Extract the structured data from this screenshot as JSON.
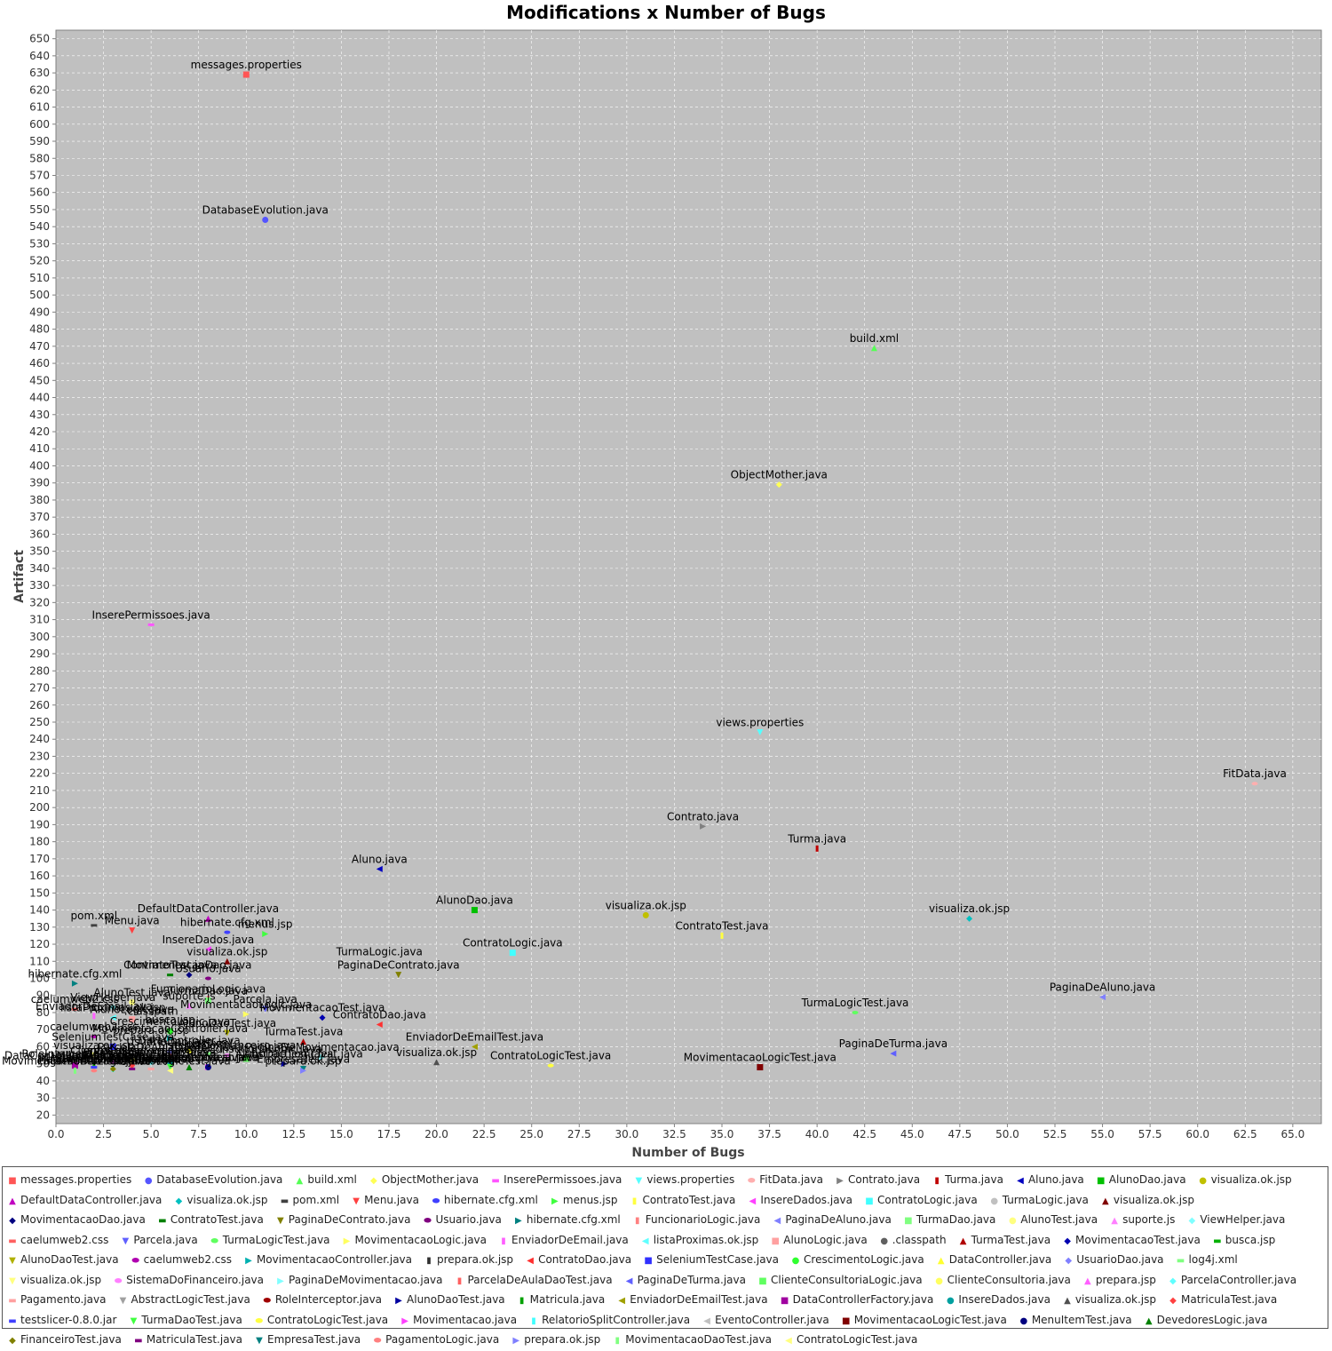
{
  "chart_data": {
    "type": "scatter",
    "title": "Modifications x Number of Bugs",
    "xlabel": "Number of Bugs",
    "ylabel": "Artifact",
    "xlim": [
      0,
      66.5
    ],
    "ylim": [
      15,
      655
    ],
    "x_tick_step": 2.5,
    "y_tick_step": 10,
    "grid": true,
    "legend_position": "bottom",
    "points": [
      {
        "name": "messages.properties",
        "x": 10,
        "y": 629,
        "color": "#ff5555",
        "shape": "square"
      },
      {
        "name": "DatabaseEvolution.java",
        "x": 11,
        "y": 544,
        "color": "#5555ff",
        "shape": "circle"
      },
      {
        "name": "build.xml",
        "x": 43,
        "y": 469,
        "color": "#55ff55",
        "shape": "triangle-up"
      },
      {
        "name": "ObjectMother.java",
        "x": 38,
        "y": 389,
        "color": "#ffff55",
        "shape": "diamond"
      },
      {
        "name": "InserePermissoes.java",
        "x": 5,
        "y": 307,
        "color": "#ff55ff",
        "shape": "rect-h"
      },
      {
        "name": "views.properties",
        "x": 37,
        "y": 244,
        "color": "#55ffff",
        "shape": "triangle-down"
      },
      {
        "name": "FitData.java",
        "x": 63,
        "y": 214,
        "color": "#ffafaf",
        "shape": "ellipse"
      },
      {
        "name": "Contrato.java",
        "x": 34,
        "y": 189,
        "color": "#808080",
        "shape": "triangle-right"
      },
      {
        "name": "Turma.java",
        "x": 40,
        "y": 176,
        "color": "#c00000",
        "shape": "rect-v"
      },
      {
        "name": "Aluno.java",
        "x": 17,
        "y": 164,
        "color": "#0000c0",
        "shape": "triangle-left"
      },
      {
        "name": "AlunoDao.java",
        "x": 22,
        "y": 140,
        "color": "#00c000",
        "shape": "square"
      },
      {
        "name": "visualiza.ok.jsp",
        "x": 31,
        "y": 137,
        "color": "#c0c000",
        "shape": "circle"
      },
      {
        "name": "DefaultDataController.java",
        "x": 8,
        "y": 135,
        "color": "#c000c0",
        "shape": "triangle-up"
      },
      {
        "name": "visualiza.ok.jsp",
        "x": 48,
        "y": 135,
        "color": "#00c0c0",
        "shape": "diamond"
      },
      {
        "name": "pom.xml",
        "x": 2,
        "y": 131,
        "color": "#404040",
        "shape": "rect-h"
      },
      {
        "name": "Menu.java",
        "x": 4,
        "y": 128,
        "color": "#ff4040",
        "shape": "triangle-down"
      },
      {
        "name": "hibernate.cfg.xml",
        "x": 9,
        "y": 127,
        "color": "#4040ff",
        "shape": "ellipse"
      },
      {
        "name": "menus.jsp",
        "x": 11,
        "y": 126,
        "color": "#40ff40",
        "shape": "triangle-right"
      },
      {
        "name": "ContratoTest.java",
        "x": 35,
        "y": 125,
        "color": "#ffff40",
        "shape": "rect-v"
      },
      {
        "name": "InsereDados.java",
        "x": 8,
        "y": 117,
        "color": "#ff40ff",
        "shape": "triangle-left"
      },
      {
        "name": "ContratoLogic.java",
        "x": 24,
        "y": 115,
        "color": "#40ffff",
        "shape": "square"
      },
      {
        "name": "TurmaLogic.java",
        "x": 17,
        "y": 110,
        "color": "#c0c0c0",
        "shape": "circle"
      },
      {
        "name": "visualiza.ok.jsp",
        "x": 9,
        "y": 110,
        "color": "#800000",
        "shape": "triangle-up"
      },
      {
        "name": "MovimentacaoDao.java",
        "x": 7,
        "y": 102,
        "color": "#000080",
        "shape": "diamond"
      },
      {
        "name": "ContratoTest.java",
        "x": 6,
        "y": 102,
        "color": "#008000",
        "shape": "rect-h"
      },
      {
        "name": "PaginaDeContrato.java",
        "x": 18,
        "y": 102,
        "color": "#808000",
        "shape": "triangle-down"
      },
      {
        "name": "Usuario.java",
        "x": 8,
        "y": 100,
        "color": "#800080",
        "shape": "ellipse"
      },
      {
        "name": "hibernate.cfg.xml",
        "x": 1,
        "y": 97,
        "color": "#008080",
        "shape": "triangle-right"
      },
      {
        "name": "FuncionarioLogic.java",
        "x": 8,
        "y": 88,
        "color": "#ff8080",
        "shape": "rect-v"
      },
      {
        "name": "PaginaDeAluno.java",
        "x": 55,
        "y": 89,
        "color": "#8080ff",
        "shape": "triangle-left"
      },
      {
        "name": "TurmaDao.java",
        "x": 8,
        "y": 87,
        "color": "#80ff80",
        "shape": "square"
      },
      {
        "name": "AlunoTest.java",
        "x": 4,
        "y": 86,
        "color": "#ffff80",
        "shape": "circle"
      },
      {
        "name": "suporte.js",
        "x": 7,
        "y": 84,
        "color": "#ff80ff",
        "shape": "triangle-up"
      },
      {
        "name": "ViewHelper.java",
        "x": 3,
        "y": 83,
        "color": "#80ffff",
        "shape": "diamond"
      },
      {
        "name": "caelumweb2.css",
        "x": 1,
        "y": 82,
        "color": "#ff6060",
        "shape": "rect-h"
      },
      {
        "name": "Parcela.java",
        "x": 11,
        "y": 82,
        "color": "#6060ff",
        "shape": "triangle-down"
      },
      {
        "name": "TurmaLogicTest.java",
        "x": 42,
        "y": 80,
        "color": "#60ff60",
        "shape": "ellipse"
      },
      {
        "name": "MovimentacaoLogic.java",
        "x": 10,
        "y": 79,
        "color": "#ffff60",
        "shape": "triangle-right"
      },
      {
        "name": "EnviadorDeEmail.java",
        "x": 2,
        "y": 78,
        "color": "#ff60ff",
        "shape": "rect-v"
      },
      {
        "name": "listaProximas.ok.jsp",
        "x": 3,
        "y": 77,
        "color": "#60ffff",
        "shape": "triangle-left"
      },
      {
        "name": "AlunoLogic.java",
        "x": 4,
        "y": 76,
        "color": "#ffa0a0",
        "shape": "square"
      },
      {
        "name": ".classpath",
        "x": 5,
        "y": 75,
        "color": "#606060",
        "shape": "circle"
      },
      {
        "name": "TurmaTest.java",
        "x": 13,
        "y": 63,
        "color": "#b00000",
        "shape": "triangle-up"
      },
      {
        "name": "MovimentacaoTest.java",
        "x": 14,
        "y": 77,
        "color": "#0000b0",
        "shape": "diamond"
      },
      {
        "name": "busca.jsp",
        "x": 6,
        "y": 70,
        "color": "#00b000",
        "shape": "rect-h"
      },
      {
        "name": "AlunoDaoTest.java",
        "x": 9,
        "y": 68,
        "color": "#b0b000",
        "shape": "triangle-down"
      },
      {
        "name": "caelumweb2.css",
        "x": 2,
        "y": 66,
        "color": "#b000b0",
        "shape": "ellipse"
      },
      {
        "name": "MovimentacaoController.java",
        "x": 6,
        "y": 65,
        "color": "#00b0b0",
        "shape": "triangle-right"
      },
      {
        "name": "prepara.ok.jsp",
        "x": 5,
        "y": 64,
        "color": "#303030",
        "shape": "rect-v"
      },
      {
        "name": "ContratoDao.java",
        "x": 17,
        "y": 73,
        "color": "#ff3030",
        "shape": "triangle-left"
      },
      {
        "name": "SeleniumTestCase.java",
        "x": 3,
        "y": 60,
        "color": "#3030ff",
        "shape": "square"
      },
      {
        "name": "CrescimentoLogic.java",
        "x": 6,
        "y": 69,
        "color": "#30ff30",
        "shape": "circle"
      },
      {
        "name": "DataController.java",
        "x": 7,
        "y": 58,
        "color": "#ffff30",
        "shape": "triangle-up"
      },
      {
        "name": "UsuarioDao.java",
        "x": 6,
        "y": 57,
        "color": "#8080ff",
        "shape": "diamond"
      },
      {
        "name": "log4j.xml",
        "x": 8,
        "y": 56,
        "color": "#80ff80",
        "shape": "rect-h"
      },
      {
        "name": "visualiza.ok.jsp",
        "x": 2,
        "y": 55,
        "color": "#ffff80",
        "shape": "triangle-down"
      },
      {
        "name": "SistemaDoFinanceiro.java",
        "x": 9,
        "y": 55,
        "color": "#ff80ff",
        "shape": "ellipse"
      },
      {
        "name": "PaginaDeMovimentacao.java",
        "x": 14,
        "y": 54,
        "color": "#80ffff",
        "shape": "triangle-right"
      },
      {
        "name": "ParcelaDeAulaDaoTest.java",
        "x": 6,
        "y": 54,
        "color": "#ff6060",
        "shape": "rect-v"
      },
      {
        "name": "PaginaDeTurma.java",
        "x": 44,
        "y": 56,
        "color": "#6060ff",
        "shape": "triangle-left"
      },
      {
        "name": "ClienteConsultoriaLogic.java",
        "x": 10,
        "y": 53,
        "color": "#60ff60",
        "shape": "square"
      },
      {
        "name": "ClienteConsultoria.java",
        "x": 4,
        "y": 52,
        "color": "#ffff60",
        "shape": "circle"
      },
      {
        "name": "prepara.jsp",
        "x": 3,
        "y": 52,
        "color": "#ff60ff",
        "shape": "triangle-up"
      },
      {
        "name": "ParcelaController.java",
        "x": 5,
        "y": 51,
        "color": "#60ffff",
        "shape": "diamond"
      },
      {
        "name": "Pagamento.java",
        "x": 5,
        "y": 47,
        "color": "#ffa0a0",
        "shape": "rect-h"
      },
      {
        "name": "AbstractLogicTest.java",
        "x": 13,
        "y": 50,
        "color": "#a0a0a0",
        "shape": "triangle-down"
      },
      {
        "name": "RoleInterceptor.java",
        "x": 1,
        "y": 50,
        "color": "#a00000",
        "shape": "ellipse"
      },
      {
        "name": "AlunoDaoTest.java",
        "x": 12,
        "y": 50,
        "color": "#0000a0",
        "shape": "triangle-right"
      },
      {
        "name": "Matricula.java",
        "x": 2,
        "y": 49,
        "color": "#00a000",
        "shape": "rect-v"
      },
      {
        "name": "EnviadorDeEmailTest.java",
        "x": 22,
        "y": 60,
        "color": "#a0a000",
        "shape": "triangle-left"
      },
      {
        "name": "DataControllerFactory.java",
        "x": 1,
        "y": 49,
        "color": "#a000a0",
        "shape": "square"
      },
      {
        "name": "InsereDados.java",
        "x": 6,
        "y": 51,
        "color": "#00a0a0",
        "shape": "circle"
      },
      {
        "name": "visualiza.ok.jsp",
        "x": 20,
        "y": 51,
        "color": "#505050",
        "shape": "triangle-up"
      },
      {
        "name": "MatriculaTest.java",
        "x": 4,
        "y": 49,
        "color": "#ff4040",
        "shape": "diamond"
      },
      {
        "name": "testslicer-0.8.0.jar",
        "x": 2,
        "y": 48,
        "color": "#4040ff",
        "shape": "rect-h"
      },
      {
        "name": "TurmaDaoTest.java",
        "x": 6,
        "y": 48,
        "color": "#40ff40",
        "shape": "triangle-down"
      },
      {
        "name": "ContratoLogicTest.java",
        "x": 26,
        "y": 49,
        "color": "#ffff40",
        "shape": "ellipse"
      },
      {
        "name": "Movimentacao.java",
        "x": 8,
        "y": 48,
        "color": "#ff40ff",
        "shape": "triangle-right"
      },
      {
        "name": "RelatorioSplitController.java",
        "x": 3,
        "y": 47,
        "color": "#40ffff",
        "shape": "rect-v"
      },
      {
        "name": "EventoController.java",
        "x": 3,
        "y": 47,
        "color": "#c0c0c0",
        "shape": "triangle-left"
      },
      {
        "name": "MovimentacaoLogicTest.java",
        "x": 37,
        "y": 48,
        "color": "#800000",
        "shape": "square"
      },
      {
        "name": "MenuItemTest.java",
        "x": 8,
        "y": 48,
        "color": "#000080",
        "shape": "circle"
      },
      {
        "name": "DevedoresLogic.java",
        "x": 7,
        "y": 48,
        "color": "#008000",
        "shape": "triangle-up"
      },
      {
        "name": "FinanceiroTest.java",
        "x": 3,
        "y": 47,
        "color": "#808000",
        "shape": "diamond"
      },
      {
        "name": "MatriculaTest.java",
        "x": 4,
        "y": 47,
        "color": "#800080",
        "shape": "rect-h"
      },
      {
        "name": "EmpresaTest.java",
        "x": 13,
        "y": 47,
        "color": "#008080",
        "shape": "triangle-down"
      },
      {
        "name": "PagamentoLogic.java",
        "x": 2,
        "y": 46,
        "color": "#ff8080",
        "shape": "ellipse"
      },
      {
        "name": "prepara.ok.jsp",
        "x": 13,
        "y": 46,
        "color": "#8080ff",
        "shape": "triangle-right"
      },
      {
        "name": "MovimentacaoDaoTest.java",
        "x": 1,
        "y": 46,
        "color": "#80ff80",
        "shape": "rect-v"
      },
      {
        "name": "ContratoLogicTest.java",
        "x": 6,
        "y": 46,
        "color": "#ffff80",
        "shape": "triangle-left"
      }
    ]
  }
}
